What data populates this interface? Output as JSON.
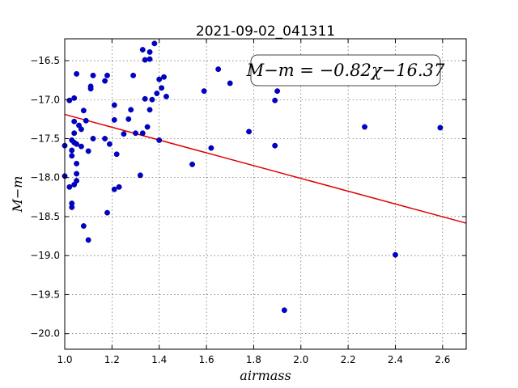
{
  "chart_data": {
    "type": "scatter",
    "title": "2021-09-02_041311",
    "xlabel": "airmass",
    "ylabel": "M−m",
    "xlim": [
      1.0,
      2.7
    ],
    "ylim": [
      -20.2,
      -16.22
    ],
    "y_inverted": true,
    "grid": true,
    "xticks": [
      1.0,
      1.2,
      1.4,
      1.6,
      1.8,
      2.0,
      2.2,
      2.4,
      2.6
    ],
    "xtick_labels": [
      "1.0",
      "1.2",
      "1.4",
      "1.6",
      "1.8",
      "2.0",
      "2.2",
      "2.4",
      "2.6"
    ],
    "yticks": [
      -16.5,
      -17.0,
      -17.5,
      -18.0,
      -18.5,
      -19.0,
      -19.5,
      -20.0
    ],
    "ytick_labels": [
      "−16.5",
      "−17.0",
      "−17.5",
      "−18.0",
      "−18.5",
      "−19.0",
      "−19.5",
      "−20.0"
    ],
    "annotation": "M−m = −0.82χ−16.37",
    "fit": {
      "slope": -0.82,
      "intercept": -16.37,
      "color": "#e00000"
    },
    "points": [
      {
        "x": 1.0,
        "y": -17.59
      },
      {
        "x": 1.0,
        "y": -17.98
      },
      {
        "x": 1.02,
        "y": -17.01
      },
      {
        "x": 1.02,
        "y": -18.12
      },
      {
        "x": 1.03,
        "y": -17.52
      },
      {
        "x": 1.03,
        "y": -17.65
      },
      {
        "x": 1.03,
        "y": -17.72
      },
      {
        "x": 1.03,
        "y": -18.33
      },
      {
        "x": 1.03,
        "y": -18.38
      },
      {
        "x": 1.04,
        "y": -16.98
      },
      {
        "x": 1.04,
        "y": -17.28
      },
      {
        "x": 1.04,
        "y": -17.55
      },
      {
        "x": 1.04,
        "y": -17.43
      },
      {
        "x": 1.04,
        "y": -18.09
      },
      {
        "x": 1.05,
        "y": -16.67
      },
      {
        "x": 1.05,
        "y": -17.57
      },
      {
        "x": 1.05,
        "y": -18.04
      },
      {
        "x": 1.05,
        "y": -17.95
      },
      {
        "x": 1.05,
        "y": -17.82
      },
      {
        "x": 1.06,
        "y": -17.33
      },
      {
        "x": 1.07,
        "y": -17.6
      },
      {
        "x": 1.07,
        "y": -17.38
      },
      {
        "x": 1.08,
        "y": -17.14
      },
      {
        "x": 1.08,
        "y": -18.62
      },
      {
        "x": 1.09,
        "y": -17.27
      },
      {
        "x": 1.1,
        "y": -17.66
      },
      {
        "x": 1.1,
        "y": -18.8
      },
      {
        "x": 1.11,
        "y": -16.83
      },
      {
        "x": 1.11,
        "y": -16.86
      },
      {
        "x": 1.12,
        "y": -16.69
      },
      {
        "x": 1.12,
        "y": -17.5
      },
      {
        "x": 1.17,
        "y": -17.5
      },
      {
        "x": 1.17,
        "y": -16.76
      },
      {
        "x": 1.18,
        "y": -16.69
      },
      {
        "x": 1.18,
        "y": -18.45
      },
      {
        "x": 1.19,
        "y": -17.57
      },
      {
        "x": 1.21,
        "y": -17.07
      },
      {
        "x": 1.21,
        "y": -17.26
      },
      {
        "x": 1.21,
        "y": -18.15
      },
      {
        "x": 1.22,
        "y": -17.7
      },
      {
        "x": 1.23,
        "y": -18.12
      },
      {
        "x": 1.25,
        "y": -17.44
      },
      {
        "x": 1.27,
        "y": -17.25
      },
      {
        "x": 1.28,
        "y": -17.13
      },
      {
        "x": 1.29,
        "y": -16.69
      },
      {
        "x": 1.3,
        "y": -17.43
      },
      {
        "x": 1.32,
        "y": -17.97
      },
      {
        "x": 1.33,
        "y": -16.36
      },
      {
        "x": 1.33,
        "y": -17.43
      },
      {
        "x": 1.34,
        "y": -16.99
      },
      {
        "x": 1.34,
        "y": -16.49
      },
      {
        "x": 1.35,
        "y": -17.35
      },
      {
        "x": 1.36,
        "y": -16.39
      },
      {
        "x": 1.36,
        "y": -16.48
      },
      {
        "x": 1.36,
        "y": -17.13
      },
      {
        "x": 1.37,
        "y": -17.0
      },
      {
        "x": 1.38,
        "y": -16.28
      },
      {
        "x": 1.39,
        "y": -16.92
      },
      {
        "x": 1.4,
        "y": -17.52
      },
      {
        "x": 1.4,
        "y": -16.74
      },
      {
        "x": 1.41,
        "y": -16.85
      },
      {
        "x": 1.42,
        "y": -16.71
      },
      {
        "x": 1.43,
        "y": -16.96
      },
      {
        "x": 1.54,
        "y": -17.83
      },
      {
        "x": 1.59,
        "y": -16.89
      },
      {
        "x": 1.62,
        "y": -17.62
      },
      {
        "x": 1.65,
        "y": -16.61
      },
      {
        "x": 1.7,
        "y": -16.79
      },
      {
        "x": 1.78,
        "y": -17.41
      },
      {
        "x": 1.89,
        "y": -17.59
      },
      {
        "x": 1.89,
        "y": -17.01
      },
      {
        "x": 1.9,
        "y": -16.89
      },
      {
        "x": 1.93,
        "y": -19.7
      },
      {
        "x": 2.27,
        "y": -17.35
      },
      {
        "x": 2.4,
        "y": -18.99
      },
      {
        "x": 2.59,
        "y": -17.36
      }
    ]
  }
}
